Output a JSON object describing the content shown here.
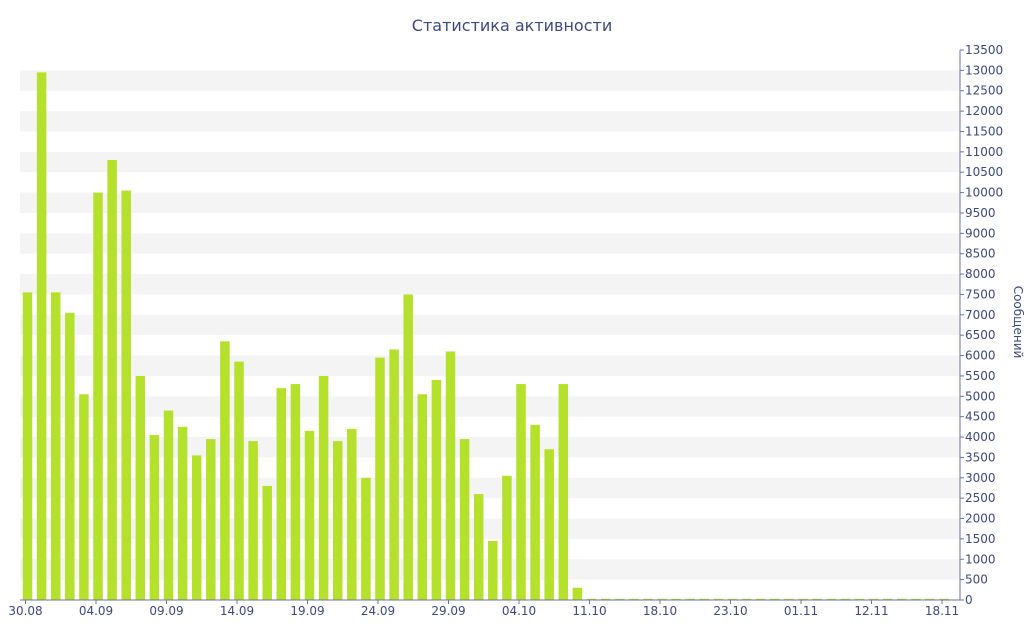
{
  "chart_data": {
    "type": "bar",
    "title": "Статистика активности",
    "ylabel": "Сообщений",
    "xlabel": "",
    "ylim": [
      0,
      13500
    ],
    "y_ticks": [
      0,
      500,
      1000,
      1500,
      2000,
      2500,
      3000,
      3500,
      4000,
      4500,
      5000,
      5500,
      6000,
      6500,
      7000,
      7500,
      8000,
      8500,
      9000,
      9500,
      10000,
      10500,
      11000,
      11500,
      12000,
      12500,
      13000,
      13500
    ],
    "x_tick_labels": [
      "30.08",
      "04.09",
      "09.09",
      "14.09",
      "19.09",
      "24.09",
      "29.09",
      "04.10",
      "11.10",
      "18.10",
      "23.10",
      "01.11",
      "12.11",
      "18.11"
    ],
    "grid": true,
    "legend": "none",
    "colors": {
      "bar": "#b5e02b",
      "text": "#3d4a80",
      "band": "#f4f4f4"
    },
    "series": [
      {
        "values": [
          7550,
          12950,
          7550,
          7050,
          5050,
          10000,
          10800,
          10050,
          5500,
          4050,
          4650,
          4250,
          3550,
          3950,
          6350,
          5850,
          3900,
          2800,
          5200,
          5300,
          4150,
          5500,
          3900,
          4200,
          3000,
          5950,
          6150,
          7500,
          5050,
          5400,
          6100,
          3950,
          2600,
          1450,
          3050,
          5300,
          4300,
          3700,
          5300,
          300,
          30,
          30,
          30,
          30,
          30,
          30,
          30,
          30,
          30,
          30,
          30,
          30,
          30,
          30,
          30,
          30,
          30,
          30,
          30,
          30,
          30,
          30,
          30,
          30,
          30,
          30
        ]
      }
    ]
  }
}
